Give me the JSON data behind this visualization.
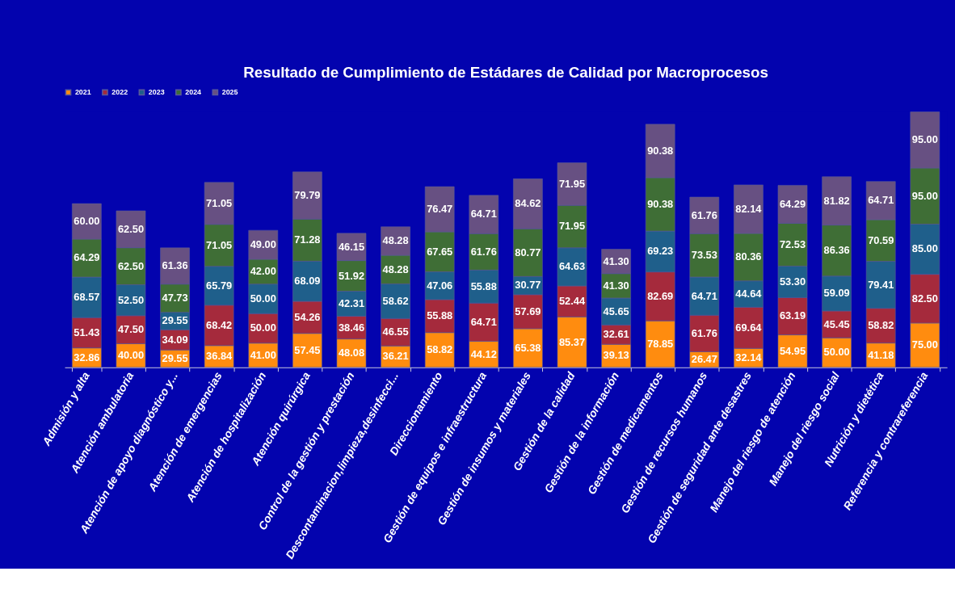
{
  "chart_data": {
    "type": "bar",
    "title": "Resultado de Cumplimiento de Estádares de Calidad por Macroprocesos",
    "categories": [
      "Admisión y alta",
      "Atención ambulatoria",
      "Atención de apoyo diagnóstico y...",
      "Atención de emergencias",
      "Atención de hospitalización",
      "Atención quirúrgica",
      "Control de la gestión y prestación",
      "Descontaminacion,limpieza,desinfecci...",
      "Direccionamiento",
      "Gestión de equipos e infraestructura",
      "Gestión de insumos y materiales",
      "Gestión de la calidad",
      "Gestión de la información",
      "Gestión de medicamentos",
      "Gestión de recursos humanos",
      "Gestión de seguridad ante desastres",
      "Manejo del riesgo de atención",
      "Manejo del riesgo social",
      "Nutrición y dietética",
      "Referencia y contrareferencia"
    ],
    "series": [
      {
        "name": "2021",
        "color": "#ff8c0f",
        "values": [
          32.86,
          40.0,
          29.55,
          36.84,
          41.0,
          57.45,
          48.08,
          36.21,
          58.82,
          44.12,
          65.38,
          85.37,
          39.13,
          78.85,
          26.47,
          32.14,
          54.95,
          50.0,
          41.18,
          75.0
        ],
        "value_labels": [
          "32.86",
          "40.00",
          "29.55",
          "36.84",
          "41.00",
          "57.45",
          "48.08",
          "36.21",
          "58.82",
          "44.12",
          "65.38",
          "85.37",
          "39.13",
          "78.85",
          "26.47",
          "32.14",
          "54.95",
          "50.00",
          "41.18",
          "75.00"
        ]
      },
      {
        "name": "2022",
        "color": "#a52a3c",
        "values": [
          51.43,
          47.5,
          34.09,
          68.42,
          50.0,
          54.26,
          38.46,
          46.55,
          55.88,
          64.71,
          57.69,
          52.44,
          32.61,
          82.69,
          61.76,
          69.64,
          63.19,
          45.45,
          58.82,
          82.5
        ],
        "value_labels": [
          "51.43",
          "47.50",
          "34.09",
          "68.42",
          "50.00",
          "54.26",
          "38.46",
          "46.55",
          "55.88",
          "64.71",
          "57.69",
          "52.44",
          "32.61",
          "82.69",
          "61.76",
          "69.64",
          "63.19",
          "45.45",
          "58.82",
          "82.50"
        ]
      },
      {
        "name": "2023",
        "color": "#1f5f8b",
        "values": [
          68.57,
          52.5,
          29.55,
          65.79,
          50.0,
          68.09,
          42.31,
          58.62,
          47.06,
          55.88,
          30.77,
          64.63,
          45.65,
          69.23,
          64.71,
          44.64,
          53.3,
          59.09,
          79.41,
          85.0
        ],
        "value_labels": [
          "68.57",
          "52.50",
          "29.55",
          "65.79",
          "50.00",
          "68.09",
          "42.31",
          "58.62",
          "47.06",
          "55.88",
          "30.77",
          "64.63",
          "45.65",
          "69.23",
          "64.71",
          "44.64",
          "53.30",
          "59.09",
          "79.41",
          "85.00"
        ]
      },
      {
        "name": "2024",
        "color": "#3f6e36",
        "values": [
          64.29,
          62.5,
          47.73,
          71.05,
          42.0,
          71.28,
          51.92,
          48.28,
          67.65,
          61.76,
          80.77,
          71.95,
          41.3,
          90.38,
          73.53,
          80.36,
          72.53,
          86.36,
          70.59,
          95.0
        ],
        "value_labels": [
          "64.29",
          "62.50",
          "47.73",
          "71.05",
          "42.00",
          "71.28",
          "51.92",
          "48.28",
          "67.65",
          "61.76",
          "80.77",
          "71.95",
          "41.30",
          "90.38",
          "73.53",
          "80.36",
          "72.53",
          "86.36",
          "70.59",
          "95.00"
        ]
      },
      {
        "name": "2025",
        "color": "#675082",
        "values": [
          60.0,
          62.5,
          61.36,
          71.05,
          49.0,
          79.79,
          46.15,
          48.28,
          76.47,
          64.71,
          84.62,
          71.95,
          41.3,
          90.38,
          61.76,
          82.14,
          64.29,
          81.82,
          64.71,
          95.0
        ],
        "value_labels": [
          "60.00",
          "62.50",
          "61.36",
          "71.05",
          "49.00",
          "79.79",
          "46.15",
          "48.28",
          "76.47",
          "64.71",
          "84.62",
          "71.95",
          "41.30",
          "90.38",
          "61.76",
          "82.14",
          "64.29",
          "81.82",
          "64.71",
          "95.00"
        ]
      }
    ],
    "stacked": true,
    "legend": "top",
    "tick_labels": "x"
  }
}
